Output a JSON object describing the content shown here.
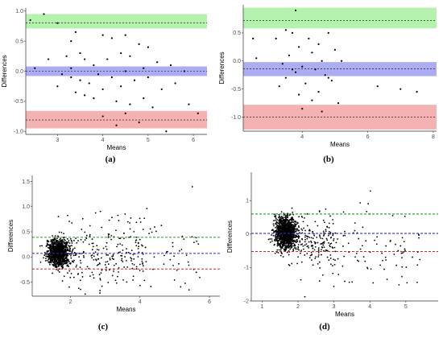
{
  "chart_data": [
    {
      "panel": "(a)",
      "type": "scatter",
      "xlabel": "Means",
      "ylabel": "Differences",
      "xlim": [
        2.3,
        6.3
      ],
      "ylim": [
        -1.05,
        1.05
      ],
      "xticks": [
        3,
        4,
        5,
        6
      ],
      "yticks": [
        -1.0,
        -0.5,
        0.0,
        0.5,
        1.0
      ],
      "tick_labels_y": [
        "-1.0",
        "-0.5",
        "0.0",
        "0.5",
        "1.0"
      ],
      "tick_labels_x": [
        "3",
        "4",
        "5",
        "6"
      ],
      "grid": false,
      "bands": [
        {
          "color": "green",
          "center": 0.8,
          "lower": 0.71,
          "upper": 0.95
        },
        {
          "color": "blue",
          "center": 0.0,
          "lower": -0.08,
          "upper": 0.08
        },
        {
          "color": "red",
          "center": -0.81,
          "lower": -0.95,
          "upper": -0.66
        }
      ],
      "points": [
        [
          2.4,
          0.85
        ],
        [
          2.7,
          0.95
        ],
        [
          3.0,
          0.8
        ],
        [
          2.5,
          0.05
        ],
        [
          3.4,
          0.65
        ],
        [
          3.3,
          0.5
        ],
        [
          3.5,
          0.3
        ],
        [
          4.0,
          0.6
        ],
        [
          4.2,
          0.55
        ],
        [
          4.5,
          0.6
        ],
        [
          4.8,
          0.45
        ],
        [
          5.0,
          0.4
        ],
        [
          3.2,
          0.25
        ],
        [
          3.6,
          0.2
        ],
        [
          3.8,
          0.1
        ],
        [
          4.1,
          0.2
        ],
        [
          4.4,
          0.3
        ],
        [
          4.6,
          0.25
        ],
        [
          5.2,
          0.15
        ],
        [
          5.5,
          0.1
        ],
        [
          3.1,
          -0.05
        ],
        [
          3.3,
          -0.1
        ],
        [
          3.5,
          -0.15
        ],
        [
          3.7,
          -0.2
        ],
        [
          3.9,
          -0.05
        ],
        [
          4.2,
          -0.1
        ],
        [
          4.4,
          -0.25
        ],
        [
          4.7,
          -0.15
        ],
        [
          5.0,
          -0.1
        ],
        [
          5.3,
          -0.3
        ],
        [
          3.4,
          -0.35
        ],
        [
          3.6,
          -0.4
        ],
        [
          3.8,
          -0.45
        ],
        [
          4.0,
          -0.3
        ],
        [
          4.3,
          -0.5
        ],
        [
          4.6,
          -0.55
        ],
        [
          4.9,
          -0.45
        ],
        [
          5.1,
          -0.6
        ],
        [
          4.0,
          -0.75
        ],
        [
          4.5,
          -0.7
        ],
        [
          4.8,
          -0.85
        ],
        [
          5.4,
          -1.0
        ],
        [
          5.9,
          -0.55
        ],
        [
          6.1,
          -0.7
        ],
        [
          4.3,
          -0.9
        ],
        [
          3.3,
          0.05
        ],
        [
          4.5,
          0.0
        ],
        [
          5.8,
          0.0
        ],
        [
          2.8,
          0.2
        ],
        [
          3.0,
          -0.25
        ],
        [
          4.9,
          0.05
        ],
        [
          5.6,
          -0.2
        ]
      ]
    },
    {
      "panel": "(b)",
      "type": "scatter",
      "xlabel": "Means",
      "ylabel": "Differences",
      "xlim": [
        2.2,
        8.1
      ],
      "ylim": [
        -1.25,
        1.0
      ],
      "xticks": [
        4,
        6,
        8
      ],
      "yticks": [
        -1.0,
        -0.5,
        0.0,
        0.5
      ],
      "tick_labels_y": [
        "-1.0",
        "-0.5",
        "0.0",
        "0.5"
      ],
      "tick_labels_x": [
        "4",
        "6",
        "8"
      ],
      "grid": false,
      "bands": [
        {
          "color": "green",
          "center": 0.72,
          "lower": 0.58,
          "upper": 0.95
        },
        {
          "color": "blue",
          "center": -0.14,
          "lower": -0.27,
          "upper": -0.02
        },
        {
          "color": "red",
          "center": -1.0,
          "lower": -1.22,
          "upper": -0.78
        }
      ],
      "points": [
        [
          3.8,
          0.9
        ],
        [
          3.5,
          0.55
        ],
        [
          3.7,
          0.5
        ],
        [
          4.8,
          0.5
        ],
        [
          4.2,
          0.4
        ],
        [
          3.2,
          0.4
        ],
        [
          2.5,
          0.4
        ],
        [
          4.5,
          0.3
        ],
        [
          3.9,
          0.25
        ],
        [
          5.0,
          0.2
        ],
        [
          4.3,
          0.15
        ],
        [
          3.6,
          0.1
        ],
        [
          2.6,
          0.05
        ],
        [
          4.6,
          0.0
        ],
        [
          5.2,
          0.0
        ],
        [
          3.4,
          -0.05
        ],
        [
          4.0,
          -0.1
        ],
        [
          4.4,
          -0.15
        ],
        [
          3.8,
          -0.2
        ],
        [
          4.7,
          -0.25
        ],
        [
          3.5,
          -0.3
        ],
        [
          4.9,
          -0.35
        ],
        [
          4.1,
          -0.4
        ],
        [
          3.3,
          -0.45
        ],
        [
          4.5,
          -0.55
        ],
        [
          3.9,
          -0.6
        ],
        [
          4.3,
          -0.7
        ],
        [
          5.1,
          -0.75
        ],
        [
          4.0,
          -0.85
        ],
        [
          4.6,
          -0.9
        ],
        [
          6.3,
          -0.45
        ],
        [
          7.0,
          -0.5
        ],
        [
          7.5,
          -0.55
        ],
        [
          4.8,
          -0.3
        ],
        [
          3.7,
          -0.15
        ]
      ]
    },
    {
      "panel": "(c)",
      "type": "scatter",
      "xlabel": "Means",
      "ylabel": "Differences",
      "xlim": [
        0.9,
        6.3
      ],
      "ylim": [
        -0.78,
        1.62
      ],
      "xticks": [
        2,
        4,
        6
      ],
      "yticks": [
        -0.5,
        0.0,
        0.5,
        1.0,
        1.5
      ],
      "tick_labels_y": [
        "-0.5",
        "0.0",
        "0.5",
        "1.0",
        "1.5"
      ],
      "tick_labels_x": [
        "2",
        "4",
        "6"
      ],
      "grid": false,
      "lines": [
        {
          "color": "green",
          "value": 0.39
        },
        {
          "color": "blue",
          "value": 0.07
        },
        {
          "color": "red",
          "value": -0.24
        }
      ],
      "points_note": "dense cluster of ~2000 points centered near mean 1.5-2.0, differences -0.7 to 1.5"
    },
    {
      "panel": "(d)",
      "type": "scatter",
      "xlabel": "Means",
      "ylabel": "Differences",
      "xlim": [
        0.7,
        5.9
      ],
      "ylim": [
        -2.0,
        1.85
      ],
      "xticks": [
        1,
        2,
        3,
        4,
        5
      ],
      "yticks": [
        -2,
        -1,
        0,
        1
      ],
      "tick_labels_y": [
        "-2",
        "-1",
        "0",
        "1"
      ],
      "tick_labels_x": [
        "1",
        "2",
        "3",
        "4",
        "5"
      ],
      "grid": false,
      "lines": [
        {
          "color": "green",
          "value": 0.6
        },
        {
          "color": "blue",
          "value": 0.02
        },
        {
          "color": "red",
          "value": -0.52
        }
      ],
      "points_note": "dense cluster of ~2000 points centered near mean 1.5-2.0, differences -1.8 to 1.8"
    }
  ],
  "colors": {
    "green_band": "#a8f0a0",
    "blue_band": "#9d9df0",
    "red_band": "#f3a4a4",
    "green_line": "#1c9d1c",
    "blue_line": "#2b2bcc",
    "red_line": "#cc2b2b",
    "point": "#000000",
    "axis": "#333333"
  }
}
